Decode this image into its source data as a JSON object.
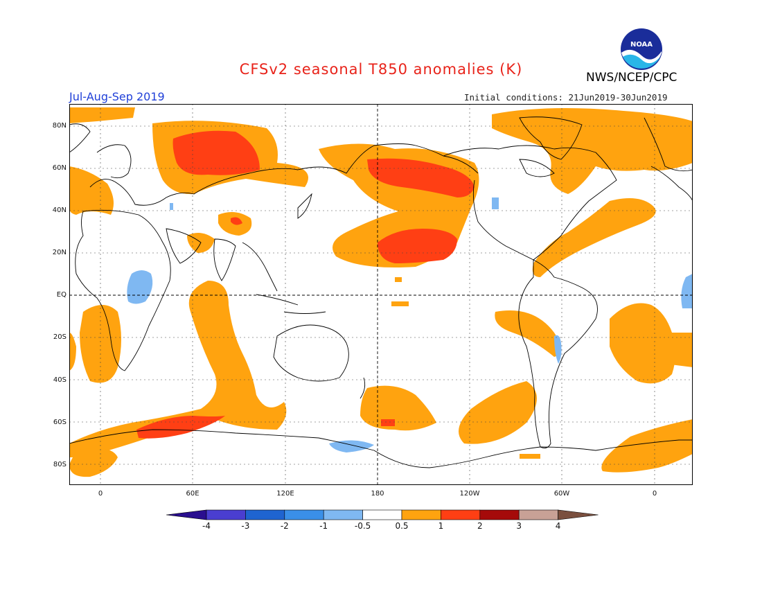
{
  "header": {
    "title": "CFSv2 seasonal T850 anomalies (K)",
    "agency": "NWS/NCEP/CPC",
    "season": "Jul-Aug-Sep 2019",
    "initial_conditions": "Initial conditions: 21Jun2019-30Jun2019",
    "logo_text": "NOAA"
  },
  "axes": {
    "lat_labels": [
      "80N",
      "60N",
      "40N",
      "20N",
      "EQ",
      "20S",
      "40S",
      "60S",
      "80S"
    ],
    "lon_labels": [
      "0",
      "60E",
      "120E",
      "180",
      "120W",
      "60W",
      "0"
    ]
  },
  "colorbar": {
    "labels": [
      "-4",
      "-3",
      "-2",
      "-1",
      "-0.5",
      "0.5",
      "1",
      "2",
      "3",
      "4"
    ],
    "colors": [
      "#2a0f8f",
      "#4a3ed0",
      "#1f64d0",
      "#3a8fe8",
      "#7fb8f2",
      "#ffffff",
      "#ffa30f",
      "#ff3f14",
      "#a50a0a",
      "#c8a196",
      "#7a4f3e"
    ]
  },
  "colors": {
    "warm1": "#ffa30f",
    "warm2": "#ff3f14",
    "cool1": "#7fb8f2",
    "title": "#e8231a",
    "season": "#1f3fd8"
  }
}
